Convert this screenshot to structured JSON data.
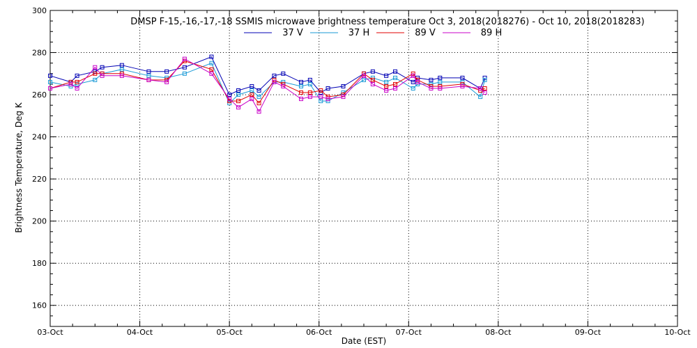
{
  "chart_data": {
    "type": "line",
    "title": "DMSP F-15,-16,-17,-18 SSMIS microwave brightness temperature Oct  3, 2018(2018276) - Oct 10, 2018(2018283)",
    "xlabel": "Date (EST)",
    "ylabel": "Brightness Temperature, Deg K",
    "xlim": [
      0,
      7
    ],
    "ylim": [
      150,
      300
    ],
    "x_ticks": [
      0,
      1,
      2,
      3,
      4,
      5,
      6,
      7
    ],
    "x_tick_labels": [
      "03-Oct",
      "04-Oct",
      "05-Oct",
      "06-Oct",
      "07-Oct",
      "08-Oct",
      "09-Oct",
      "10-Oct"
    ],
    "y_ticks": [
      160,
      180,
      200,
      220,
      240,
      260,
      280,
      300
    ],
    "grid": true,
    "legend_position": "top-center",
    "series": [
      {
        "name": "37 V",
        "color": "#0000b4",
        "points": [
          [
            0.0,
            269
          ],
          [
            0.23,
            266
          ],
          [
            0.3,
            269
          ],
          [
            0.5,
            271
          ],
          [
            0.58,
            273
          ],
          [
            0.8,
            274
          ],
          [
            1.1,
            271
          ],
          [
            1.3,
            271
          ],
          [
            1.5,
            273
          ],
          [
            1.8,
            278
          ],
          [
            2.0,
            260
          ],
          [
            2.1,
            262
          ],
          [
            2.25,
            264
          ],
          [
            2.33,
            262
          ],
          [
            2.5,
            269
          ],
          [
            2.6,
            270
          ],
          [
            2.8,
            266
          ],
          [
            2.9,
            267
          ],
          [
            3.02,
            261
          ],
          [
            3.1,
            263
          ],
          [
            3.27,
            264
          ],
          [
            3.5,
            270
          ],
          [
            3.6,
            271
          ],
          [
            3.75,
            269
          ],
          [
            3.85,
            271
          ],
          [
            4.05,
            266
          ],
          [
            4.1,
            268
          ],
          [
            4.25,
            267
          ],
          [
            4.35,
            268
          ],
          [
            4.6,
            268
          ],
          [
            4.8,
            263
          ],
          [
            4.85,
            268
          ]
        ]
      },
      {
        "name": "37 H",
        "color": "#1a9ad6",
        "points": [
          [
            0.0,
            266
          ],
          [
            0.23,
            264
          ],
          [
            0.3,
            265
          ],
          [
            0.5,
            267
          ],
          [
            0.58,
            270
          ],
          [
            0.8,
            272
          ],
          [
            1.1,
            269
          ],
          [
            1.3,
            268
          ],
          [
            1.5,
            270
          ],
          [
            1.8,
            275
          ],
          [
            2.0,
            256
          ],
          [
            2.1,
            260
          ],
          [
            2.25,
            262
          ],
          [
            2.33,
            259
          ],
          [
            2.5,
            266
          ],
          [
            2.6,
            266
          ],
          [
            2.8,
            264
          ],
          [
            2.9,
            265
          ],
          [
            3.02,
            257
          ],
          [
            3.1,
            257
          ],
          [
            3.27,
            261
          ],
          [
            3.5,
            267
          ],
          [
            3.6,
            268
          ],
          [
            3.75,
            266
          ],
          [
            3.85,
            268
          ],
          [
            4.05,
            263
          ],
          [
            4.1,
            265
          ],
          [
            4.25,
            265
          ],
          [
            4.35,
            266
          ],
          [
            4.6,
            266
          ],
          [
            4.8,
            259
          ],
          [
            4.85,
            267
          ]
        ]
      },
      {
        "name": "89 V",
        "color": "#e00000",
        "points": [
          [
            0.0,
            263
          ],
          [
            0.23,
            266
          ],
          [
            0.3,
            266
          ],
          [
            0.5,
            270
          ],
          [
            0.58,
            270
          ],
          [
            0.8,
            270
          ],
          [
            1.1,
            267
          ],
          [
            1.3,
            267
          ],
          [
            1.5,
            276
          ],
          [
            1.8,
            272
          ],
          [
            2.0,
            257
          ],
          [
            2.1,
            257
          ],
          [
            2.25,
            260
          ],
          [
            2.33,
            256
          ],
          [
            2.5,
            267
          ],
          [
            2.6,
            265
          ],
          [
            2.8,
            261
          ],
          [
            2.9,
            261
          ],
          [
            3.02,
            262
          ],
          [
            3.1,
            259
          ],
          [
            3.27,
            260
          ],
          [
            3.5,
            270
          ],
          [
            3.6,
            267
          ],
          [
            3.75,
            264
          ],
          [
            3.85,
            265
          ],
          [
            4.05,
            270
          ],
          [
            4.1,
            267
          ],
          [
            4.25,
            264
          ],
          [
            4.35,
            264
          ],
          [
            4.6,
            265
          ],
          [
            4.8,
            262
          ],
          [
            4.85,
            263
          ]
        ]
      },
      {
        "name": "89 H",
        "color": "#c800c8",
        "points": [
          [
            0.0,
            263
          ],
          [
            0.23,
            265
          ],
          [
            0.3,
            263
          ],
          [
            0.5,
            273
          ],
          [
            0.58,
            269
          ],
          [
            0.8,
            269
          ],
          [
            1.1,
            267
          ],
          [
            1.3,
            266
          ],
          [
            1.5,
            277
          ],
          [
            1.8,
            270
          ],
          [
            2.0,
            258
          ],
          [
            2.1,
            254
          ],
          [
            2.25,
            258
          ],
          [
            2.33,
            252
          ],
          [
            2.5,
            266
          ],
          [
            2.6,
            264
          ],
          [
            2.8,
            258
          ],
          [
            2.9,
            259
          ],
          [
            3.02,
            259
          ],
          [
            3.1,
            258
          ],
          [
            3.27,
            259
          ],
          [
            3.5,
            269
          ],
          [
            3.6,
            265
          ],
          [
            3.75,
            262
          ],
          [
            3.85,
            263
          ],
          [
            4.05,
            269
          ],
          [
            4.1,
            266
          ],
          [
            4.25,
            263
          ],
          [
            4.35,
            263
          ],
          [
            4.6,
            264
          ],
          [
            4.8,
            263
          ],
          [
            4.85,
            261
          ]
        ]
      }
    ]
  }
}
